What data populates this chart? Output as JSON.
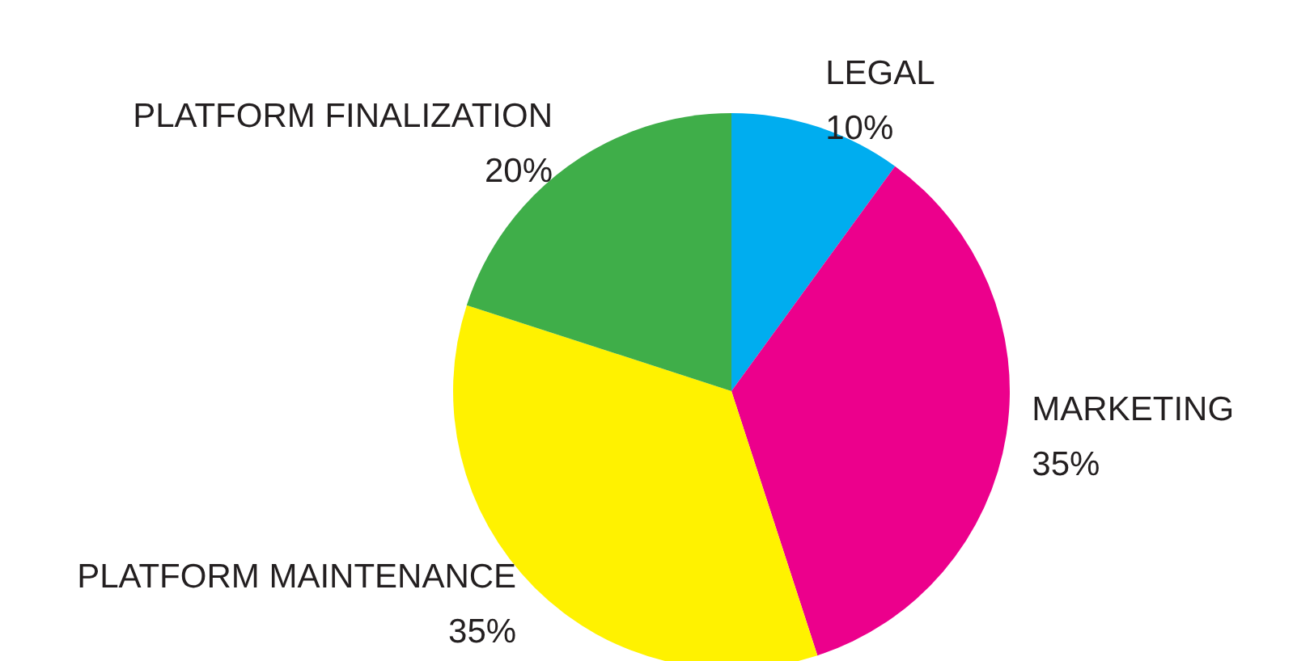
{
  "chart_data": {
    "type": "pie",
    "categories": [
      "LEGAL",
      "MARKETING",
      "PLATFORM MAINTENANCE",
      "PLATFORM FINALIZATION"
    ],
    "values": [
      10,
      35,
      35,
      20
    ],
    "colors": [
      "#00adef",
      "#ec008c",
      "#fff200",
      "#3fae49"
    ],
    "value_labels": [
      "10%",
      "35%",
      "35%",
      "20%"
    ],
    "legend": false
  }
}
